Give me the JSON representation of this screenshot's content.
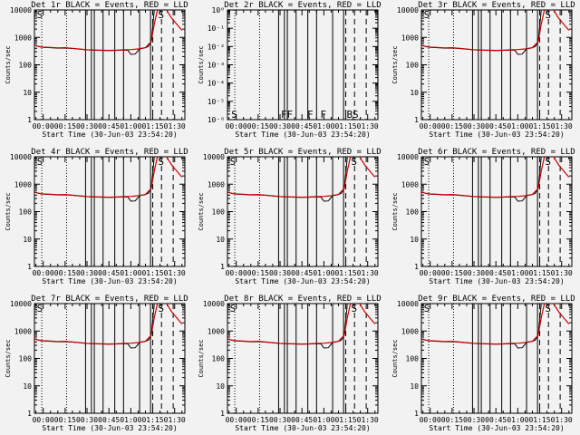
{
  "figure": {
    "y_tick_labels_counts": [
      "1",
      "10",
      "100",
      "1000",
      "10000"
    ],
    "y_tick_labels_small": [
      "10⁰",
      "10⁻¹",
      "10⁻²",
      "10⁻³",
      "10⁻⁴",
      "10⁻⁵",
      "10⁻⁶"
    ],
    "x_tick_labels": [
      "00:00",
      "00:15",
      "00:30",
      "00:45",
      "01:00",
      "01:15",
      "01:30"
    ]
  },
  "chart_data": [
    {
      "type": "line",
      "id": "det1",
      "title": "Det 1r BLACK = Events, RED = LLD",
      "xlabel": "Start Time (30-Jun-03 23:54:20)",
      "ylabel": "Counts/sec",
      "yscale": "log",
      "ylim": [
        1,
        10000
      ],
      "x_unit": "minutes after 00:00",
      "xlim": [
        -6,
        97
      ],
      "events": "typical",
      "segment_labels": [
        "S",
        "S"
      ],
      "series": [
        {
          "name": "Events",
          "color": "#000000"
        },
        {
          "name": "LLD",
          "color": "#cc0000"
        }
      ]
    },
    {
      "type": "line",
      "id": "det2",
      "title": "Det 2r BLACK = Events, RED = LLD",
      "xlabel": "Start Time (30-Jun-03 23:54:20)",
      "ylabel": "Counts/sec",
      "yscale": "log",
      "ylim": [
        1e-06,
        1
      ],
      "x_unit": "minutes after 00:00",
      "xlim": [
        -6,
        97
      ],
      "events": "none",
      "segment_labels": [
        "S",
        "F",
        "F",
        "F",
        "F",
        "B",
        "S"
      ],
      "series": [
        {
          "name": "Events",
          "color": "#000000"
        },
        {
          "name": "LLD",
          "color": "#cc0000"
        }
      ]
    },
    {
      "type": "line",
      "id": "det3",
      "title": "Det 3r BLACK = Events, RED = LLD",
      "xlabel": "Start Time (30-Jun-03 23:54:20)",
      "ylabel": "Counts/sec",
      "yscale": "log",
      "ylim": [
        1,
        10000
      ],
      "x_unit": "minutes after 00:00",
      "xlim": [
        -6,
        97
      ],
      "events": "typical",
      "segment_labels": [
        "S",
        "S"
      ],
      "series": [
        {
          "name": "Events",
          "color": "#000000"
        },
        {
          "name": "LLD",
          "color": "#cc0000"
        }
      ]
    },
    {
      "type": "line",
      "id": "det4",
      "title": "Det 4r BLACK = Events, RED = LLD",
      "xlabel": "Start Time (30-Jun-03 23:54:20)",
      "ylabel": "Counts/sec",
      "yscale": "log",
      "ylim": [
        1,
        10000
      ],
      "x_unit": "minutes after 00:00",
      "xlim": [
        -6,
        97
      ],
      "events": "typical",
      "segment_labels": [
        "S",
        "S"
      ],
      "series": [
        {
          "name": "Events",
          "color": "#000000"
        },
        {
          "name": "LLD",
          "color": "#cc0000"
        }
      ]
    },
    {
      "type": "line",
      "id": "det5",
      "title": "Det 5r BLACK = Events, RED = LLD",
      "xlabel": "Start Time (30-Jun-03 23:54:20)",
      "ylabel": "Counts/sec",
      "yscale": "log",
      "ylim": [
        1,
        10000
      ],
      "x_unit": "minutes after 00:00",
      "xlim": [
        -6,
        97
      ],
      "events": "typical",
      "segment_labels": [
        "S",
        "S"
      ],
      "series": [
        {
          "name": "Events",
          "color": "#000000"
        },
        {
          "name": "LLD",
          "color": "#cc0000"
        }
      ]
    },
    {
      "type": "line",
      "id": "det6",
      "title": "Det 6r BLACK = Events, RED = LLD",
      "xlabel": "Start Time (30-Jun-03 23:54:20)",
      "ylabel": "Counts/sec",
      "yscale": "log",
      "ylim": [
        1,
        10000
      ],
      "x_unit": "minutes after 00:00",
      "xlim": [
        -6,
        97
      ],
      "events": "typical",
      "segment_labels": [
        "S",
        "S"
      ],
      "series": [
        {
          "name": "Events",
          "color": "#000000"
        },
        {
          "name": "LLD",
          "color": "#cc0000"
        }
      ]
    },
    {
      "type": "line",
      "id": "det7",
      "title": "Det 7r BLACK = Events, RED = LLD",
      "xlabel": "Start Time (30-Jun-03 23:54:20)",
      "ylabel": "Counts/sec",
      "yscale": "log",
      "ylim": [
        1,
        10000
      ],
      "x_unit": "minutes after 00:00",
      "xlim": [
        -6,
        97
      ],
      "events": "typical",
      "segment_labels": [
        "S",
        "S"
      ],
      "series": [
        {
          "name": "Events",
          "color": "#000000"
        },
        {
          "name": "LLD",
          "color": "#cc0000"
        }
      ]
    },
    {
      "type": "line",
      "id": "det8",
      "title": "Det 8r BLACK = Events, RED = LLD",
      "xlabel": "Start Time (30-Jun-03 23:54:20)",
      "ylabel": "Counts/sec",
      "yscale": "log",
      "ylim": [
        1,
        10000
      ],
      "x_unit": "minutes after 00:00",
      "xlim": [
        -6,
        97
      ],
      "events": "typical",
      "segment_labels": [
        "S",
        "S"
      ],
      "series": [
        {
          "name": "Events",
          "color": "#000000"
        },
        {
          "name": "LLD",
          "color": "#cc0000"
        }
      ]
    },
    {
      "type": "line",
      "id": "det9",
      "title": "Det 9r BLACK = Events, RED = LLD",
      "xlabel": "Start Time (30-Jun-03 23:54:20)",
      "ylabel": "Counts/sec",
      "yscale": "log",
      "ylim": [
        1,
        10000
      ],
      "x_unit": "minutes after 00:00",
      "xlim": [
        -6,
        97
      ],
      "events": "typical",
      "segment_labels": [
        "S",
        "S"
      ],
      "series": [
        {
          "name": "Events",
          "color": "#000000"
        },
        {
          "name": "LLD",
          "color": "#cc0000"
        }
      ]
    }
  ],
  "shared": {
    "x_ticks_minutes": [
      0,
      15,
      30,
      45,
      60,
      75,
      90
    ],
    "dotted_lines_min": [
      -1,
      16
    ],
    "solid_lines_min": [
      29,
      33,
      35,
      41,
      49,
      55,
      66,
      73.5
    ],
    "dashed_lines_min": [
      75,
      81,
      89
    ],
    "events_curve": {
      "x": [
        -6,
        -4,
        -2,
        0,
        5,
        10,
        15,
        20,
        25,
        30,
        35,
        40,
        45,
        50,
        55,
        58,
        60,
        63,
        66,
        70,
        72,
        74,
        76
      ],
      "y": [
        520,
        480,
        450,
        430,
        420,
        405,
        410,
        395,
        370,
        350,
        340,
        335,
        330,
        335,
        345,
        340,
        240,
        245,
        380,
        420,
        470,
        700,
        9500
      ]
    },
    "lld_curve": {
      "x": [
        -6,
        -4,
        -2,
        0,
        5,
        10,
        15,
        20,
        25,
        30,
        35,
        40,
        45,
        50,
        55,
        60,
        65,
        70,
        74,
        76,
        78,
        80,
        84,
        88,
        92,
        95
      ],
      "y": [
        520,
        480,
        455,
        440,
        430,
        415,
        420,
        400,
        375,
        355,
        345,
        340,
        335,
        340,
        350,
        360,
        380,
        420,
        700,
        3000,
        9000,
        12000,
        11000,
        5000,
        2800,
        1800
      ]
    }
  }
}
